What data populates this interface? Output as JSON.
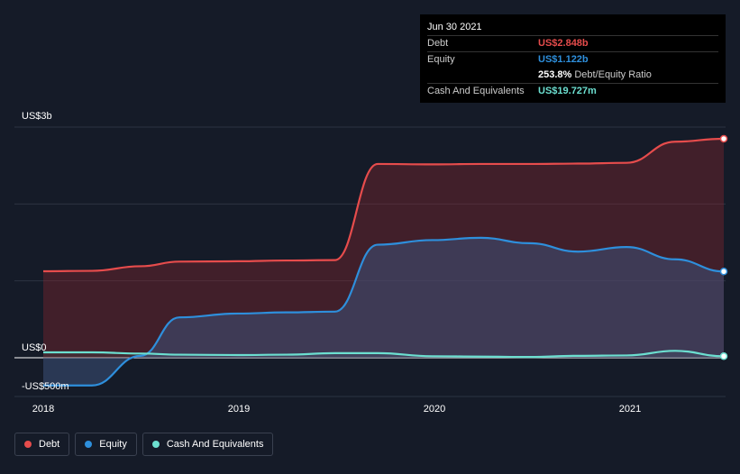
{
  "tooltip": {
    "date": "Jun 30 2021",
    "debt_label": "Debt",
    "debt_value": "US$2.848b",
    "equity_label": "Equity",
    "equity_value": "US$1.122b",
    "ratio_value": "253.8%",
    "ratio_label": "Debt/Equity Ratio",
    "cash_label": "Cash And Equivalents",
    "cash_value": "US$19.727m"
  },
  "legend": {
    "debt": "Debt",
    "equity": "Equity",
    "cash": "Cash And Equivalents"
  },
  "colors": {
    "debt": "#e64c4c",
    "equity": "#2e8fdc",
    "cash": "#6cdfd0",
    "background": "#151b28"
  },
  "chart_data": {
    "type": "area",
    "y_tick_labels": [
      "US$3b",
      "US$0",
      "-US$500m"
    ],
    "x_tick_labels": [
      "2018",
      "2019",
      "2020",
      "2021"
    ],
    "ylim": [
      -500,
      3000
    ],
    "y_unit": "US$m",
    "grid": true,
    "series": [
      {
        "name": "Debt",
        "x": [
          2018.0,
          2018.25,
          2018.5,
          2018.7,
          2019.0,
          2019.25,
          2019.5,
          2019.72,
          2020.0,
          2020.25,
          2020.5,
          2020.75,
          2021.0,
          2021.25,
          2021.5
        ],
        "values": [
          1125,
          1130,
          1190,
          1250,
          1255,
          1265,
          1270,
          2520,
          2515,
          2520,
          2520,
          2525,
          2535,
          2810,
          2848
        ]
      },
      {
        "name": "Equity",
        "x": [
          2018.0,
          2018.25,
          2018.5,
          2018.7,
          2019.0,
          2019.25,
          2019.5,
          2019.72,
          2020.0,
          2020.25,
          2020.5,
          2020.75,
          2021.0,
          2021.25,
          2021.5
        ],
        "values": [
          -360,
          -360,
          25,
          525,
          575,
          590,
          600,
          1470,
          1530,
          1560,
          1490,
          1380,
          1440,
          1280,
          1122
        ]
      },
      {
        "name": "Cash And Equivalents",
        "x": [
          2018.0,
          2018.25,
          2018.5,
          2018.7,
          2019.0,
          2019.25,
          2019.5,
          2019.72,
          2020.0,
          2020.25,
          2020.5,
          2020.75,
          2021.0,
          2021.25,
          2021.5
        ],
        "values": [
          70,
          70,
          55,
          40,
          35,
          40,
          60,
          60,
          20,
          15,
          10,
          25,
          30,
          90,
          20
        ]
      }
    ]
  }
}
